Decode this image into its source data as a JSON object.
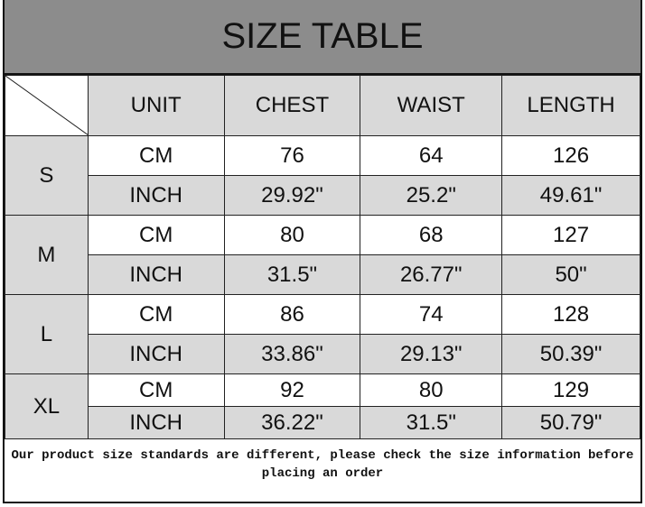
{
  "title": "SIZE TABLE",
  "headers": [
    "UNIT",
    "CHEST",
    "WAIST",
    "LENGTH"
  ],
  "sizes": [
    {
      "size": "S",
      "rows": [
        {
          "unit": "CM",
          "chest": "76",
          "waist": "64",
          "length": "126"
        },
        {
          "unit": "INCH",
          "chest": "29.92\"",
          "waist": "25.2\"",
          "length": "49.61\""
        }
      ]
    },
    {
      "size": "M",
      "rows": [
        {
          "unit": "CM",
          "chest": "80",
          "waist": "68",
          "length": "127"
        },
        {
          "unit": "INCH",
          "chest": "31.5\"",
          "waist": "26.77\"",
          "length": "50\""
        }
      ]
    },
    {
      "size": "L",
      "rows": [
        {
          "unit": "CM",
          "chest": "86",
          "waist": "74",
          "length": "128"
        },
        {
          "unit": "INCH",
          "chest": "33.86\"",
          "waist": "29.13\"",
          "length": "50.39\""
        }
      ]
    },
    {
      "size": "XL",
      "rows": [
        {
          "unit": "CM",
          "chest": "92",
          "waist": "80",
          "length": "129"
        },
        {
          "unit": "INCH",
          "chest": "36.22\"",
          "waist": "31.5\"",
          "length": "50.79\""
        }
      ]
    }
  ],
  "footer": "Our product size standards are different, please check the size information before placing an order",
  "colors": {
    "title_bg": "#8c8c8c",
    "cell_gray": "#d9d9d9"
  }
}
